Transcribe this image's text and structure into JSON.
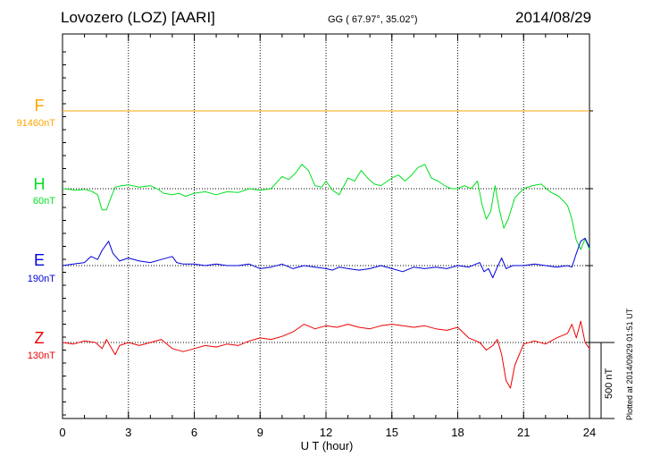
{
  "header": {
    "title": "Lovozero (LOZ)  [AARI]",
    "coords": "GG ( 67.97°,  35.02°)",
    "date": "2014/08/29",
    "plotted": "Plotted at 2014/09/29 01:51  UT",
    "scale_label": "500 nT"
  },
  "chart_data": {
    "type": "line",
    "title": "Lovozero (LOZ)  [AARI]",
    "xlabel": "U T (hour)",
    "ylabel": "",
    "xlim": [
      0,
      24
    ],
    "x_ticks": [
      "0",
      "3",
      "6",
      "9",
      "12",
      "15",
      "18",
      "21",
      "24"
    ],
    "grid": true,
    "scale_bar_nT": 500,
    "series": [
      {
        "name": "F",
        "baseline": "91460nT",
        "color": "#ffa500",
        "x": [
          0,
          6,
          12,
          18,
          24
        ],
        "y": [
          0,
          0,
          0,
          0,
          0
        ]
      },
      {
        "name": "H",
        "baseline": "60nT",
        "color": "#00e020",
        "x": [
          0,
          0.3,
          0.6,
          1.0,
          1.3,
          1.6,
          1.8,
          2.0,
          2.2,
          2.4,
          2.7,
          3.0,
          3.5,
          4.0,
          4.3,
          4.6,
          5.0,
          5.3,
          5.6,
          6.0,
          6.5,
          7.0,
          7.5,
          8.0,
          8.5,
          9.0,
          9.5,
          10.0,
          10.3,
          10.6,
          10.9,
          11.2,
          11.5,
          11.8,
          12.0,
          12.3,
          12.6,
          13.0,
          13.3,
          13.6,
          13.9,
          14.2,
          14.5,
          15.0,
          15.3,
          15.6,
          15.9,
          16.2,
          16.5,
          16.8,
          17.1,
          17.4,
          17.7,
          18.0,
          18.3,
          18.6,
          18.9,
          19.1,
          19.3,
          19.5,
          19.7,
          19.9,
          20.1,
          20.3,
          20.6,
          21.0,
          21.4,
          21.8,
          22.2,
          22.6,
          23.0,
          23.2,
          23.4,
          23.6,
          23.8,
          24.0
        ],
        "y": [
          0,
          -5,
          -10,
          -5,
          -15,
          -40,
          -140,
          -140,
          -60,
          10,
          20,
          25,
          10,
          20,
          0,
          -30,
          -40,
          -30,
          -50,
          -30,
          -20,
          -40,
          -20,
          -25,
          0,
          -10,
          0,
          80,
          60,
          100,
          160,
          120,
          20,
          10,
          50,
          -10,
          -40,
          70,
          50,
          120,
          70,
          30,
          20,
          70,
          90,
          50,
          90,
          140,
          160,
          70,
          50,
          20,
          0,
          0,
          20,
          0,
          50,
          -100,
          -200,
          -150,
          20,
          -140,
          -260,
          -200,
          -60,
          0,
          20,
          30,
          -20,
          -50,
          -110,
          -200,
          -340,
          -400,
          -330,
          -400
        ]
      },
      {
        "name": "E",
        "baseline": "190nT",
        "color": "#0000dd",
        "x": [
          0,
          0.5,
          1.0,
          1.3,
          1.6,
          1.8,
          2.0,
          2.1,
          2.3,
          2.6,
          3.0,
          3.5,
          4.0,
          4.5,
          5.0,
          5.2,
          5.5,
          6.0,
          6.5,
          7.0,
          7.5,
          8.0,
          8.5,
          9.0,
          9.5,
          10.0,
          10.5,
          11.0,
          11.5,
          12.0,
          12.3,
          12.6,
          13.0,
          13.5,
          14.0,
          14.5,
          15.0,
          15.5,
          16.0,
          16.5,
          17.0,
          17.5,
          18.0,
          18.5,
          19.0,
          19.2,
          19.4,
          19.6,
          19.8,
          20.0,
          20.2,
          20.5,
          21.0,
          21.5,
          22.0,
          22.5,
          23.0,
          23.2,
          23.4,
          23.6,
          23.8,
          24.0
        ],
        "y": [
          0,
          10,
          20,
          60,
          40,
          100,
          140,
          160,
          80,
          30,
          50,
          30,
          20,
          40,
          60,
          20,
          10,
          10,
          0,
          10,
          0,
          0,
          10,
          -20,
          -10,
          10,
          -20,
          0,
          -10,
          -20,
          -30,
          -10,
          -20,
          -30,
          -20,
          0,
          -20,
          -40,
          -10,
          -20,
          -10,
          -20,
          0,
          -10,
          20,
          -40,
          -20,
          -80,
          -10,
          50,
          -20,
          0,
          0,
          10,
          0,
          -10,
          0,
          -10,
          80,
          160,
          180,
          120
        ]
      },
      {
        "name": "Z",
        "baseline": "130nT",
        "color": "#ee0000",
        "x": [
          0,
          0.5,
          1.0,
          1.5,
          1.8,
          2.0,
          2.2,
          2.4,
          2.6,
          3.0,
          3.5,
          4.0,
          4.5,
          5.0,
          5.5,
          6.0,
          6.5,
          7.0,
          7.5,
          8.0,
          8.5,
          9.0,
          9.5,
          10.0,
          10.5,
          11.0,
          11.5,
          12.0,
          12.5,
          13.0,
          13.5,
          14.0,
          14.5,
          15.0,
          15.5,
          16.0,
          16.5,
          17.0,
          17.5,
          18.0,
          18.5,
          19.0,
          19.3,
          19.6,
          19.8,
          20.0,
          20.2,
          20.4,
          20.6,
          21.0,
          21.5,
          22.0,
          22.5,
          23.0,
          23.2,
          23.4,
          23.6,
          23.8,
          24.0
        ],
        "y": [
          0,
          -10,
          10,
          0,
          -40,
          20,
          -30,
          -80,
          -20,
          0,
          -20,
          0,
          20,
          -40,
          -60,
          -40,
          -20,
          -30,
          -10,
          -20,
          10,
          30,
          20,
          40,
          70,
          120,
          90,
          110,
          100,
          120,
          100,
          90,
          110,
          120,
          110,
          100,
          110,
          90,
          80,
          100,
          30,
          0,
          -50,
          -20,
          20,
          -80,
          -250,
          -300,
          -150,
          -10,
          10,
          -10,
          30,
          60,
          120,
          30,
          140,
          0,
          -40
        ]
      }
    ]
  }
}
